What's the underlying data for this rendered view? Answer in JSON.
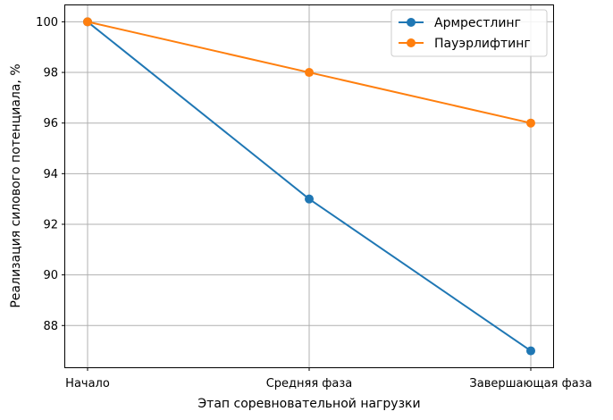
{
  "chart_data": {
    "type": "line",
    "categories": [
      "Начало",
      "Средняя фаза",
      "Завершающая фаза"
    ],
    "series": [
      {
        "name": "Армрестлинг",
        "values": [
          100,
          93,
          87
        ],
        "color": "#1f77b4"
      },
      {
        "name": "Пауэрлифтинг",
        "values": [
          100,
          98,
          96
        ],
        "color": "#ff7f0e"
      }
    ],
    "title": "",
    "xlabel": "Этап соревновательной нагрузки",
    "ylabel": "Реализация силового потенциала, %",
    "ylim": [
      86.35,
      100.65
    ],
    "yticks": [
      88,
      90,
      92,
      94,
      96,
      98,
      100
    ],
    "grid": true,
    "legend": "top-right"
  }
}
